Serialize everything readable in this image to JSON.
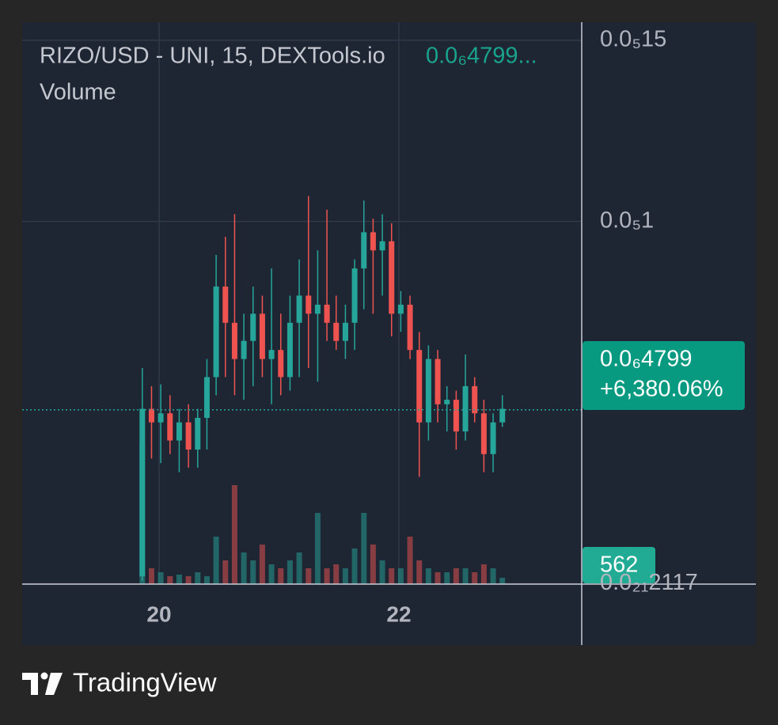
{
  "chart_data": {
    "type": "candlestick",
    "title": "RIZO/USD - UNI, 15, DEXTools.io",
    "legend_price": "0.0₆4799...",
    "volume_label": "Volume",
    "up_color": "#26a69a",
    "down_color": "#ef5350",
    "x": [
      19.86,
      19.937,
      20.014,
      20.091,
      20.168,
      20.245,
      20.322,
      20.399,
      20.476,
      20.553,
      20.63,
      20.707,
      20.784,
      20.861,
      20.938,
      21.015,
      21.092,
      21.169,
      21.246,
      21.323,
      21.4,
      21.477,
      21.554,
      21.631,
      21.708,
      21.785,
      21.862,
      21.939,
      22.016,
      22.093,
      22.17,
      22.247,
      22.324,
      22.401,
      22.478,
      22.555,
      22.632,
      22.709,
      22.786,
      22.863
    ],
    "open": [
      2e-08,
      4.825e-07,
      4.45e-07,
      4.7e-07,
      3.95e-07,
      4.45e-07,
      3.7e-07,
      4.575e-07,
      5.7e-07,
      8.2e-07,
      7.2e-07,
      6.2e-07,
      6.7e-07,
      7.45e-07,
      6.2e-07,
      6.45e-07,
      5.7e-07,
      7.2e-07,
      7.95e-07,
      7.45e-07,
      7.7e-07,
      7.2e-07,
      6.7e-07,
      7.2e-07,
      8.7e-07,
      9.7e-07,
      9.2e-07,
      9.45e-07,
      7.45e-07,
      7.7e-07,
      6.45e-07,
      4.45e-07,
      6.2e-07,
      4.95e-07,
      5.075e-07,
      4.2e-07,
      5.45e-07,
      4.7e-07,
      3.575e-07,
      4.45e-07
    ],
    "high": [
      5.95e-07,
      5.45e-07,
      5.5e-07,
      5.2e-07,
      4.825e-07,
      4.95e-07,
      4.825e-07,
      6.2e-07,
      9.075e-07,
      9.575e-07,
      1.02e-06,
      7.45e-07,
      8.2e-07,
      7.95e-07,
      8.7e-07,
      7.45e-07,
      7.95e-07,
      8.95e-07,
      1.07e-06,
      9.2e-07,
      1.0325e-06,
      7.95e-07,
      7.7e-07,
      8.95e-07,
      1.0575e-06,
      1.0075e-06,
      1.02e-06,
      9.95e-07,
      8.075e-07,
      7.95e-07,
      6.95e-07,
      6.575e-07,
      6.45e-07,
      5.45e-07,
      5.325e-07,
      6.325e-07,
      5.7e-07,
      5.075e-07,
      4.7e-07,
      5.2e-07
    ],
    "low": [
      7.5e-09,
      3.45e-07,
      3.325e-07,
      3.575e-07,
      3.075e-07,
      3.2e-07,
      3.2e-07,
      3.7e-07,
      5.2e-07,
      5.7e-07,
      5.2e-07,
      5.075e-07,
      5.45e-07,
      5.7e-07,
      4.95e-07,
      5.2e-07,
      5.325e-07,
      5.7e-07,
      5.95e-07,
      5.575e-07,
      6.7e-07,
      6.45e-07,
      6.2e-07,
      6.45e-07,
      7.575e-07,
      7.45e-07,
      7.95e-07,
      6.825e-07,
      6.95e-07,
      6.2e-07,
      2.95e-07,
      3.95e-07,
      4.45e-07,
      4.2e-07,
      3.7e-07,
      3.95e-07,
      4.45e-07,
      3.075e-07,
      3.075e-07,
      4.325e-07
    ],
    "close": [
      4.825e-07,
      4.45e-07,
      4.7e-07,
      3.95e-07,
      4.45e-07,
      3.7e-07,
      4.575e-07,
      5.7e-07,
      8.2e-07,
      7.2e-07,
      6.2e-07,
      6.7e-07,
      7.45e-07,
      6.2e-07,
      6.45e-07,
      5.7e-07,
      7.2e-07,
      7.95e-07,
      7.45e-07,
      7.7e-07,
      7.2e-07,
      6.7e-07,
      7.2e-07,
      8.7e-07,
      9.7e-07,
      9.2e-07,
      9.45e-07,
      7.45e-07,
      7.7e-07,
      6.45e-07,
      4.45e-07,
      6.2e-07,
      4.95e-07,
      5.075e-07,
      4.2e-07,
      5.45e-07,
      4.7e-07,
      3.575e-07,
      4.45e-07,
      4.825e-07
    ],
    "volume": [
      12460,
      1400,
      1050,
      700,
      840,
      700,
      1050,
      700,
      4200,
      2100,
      8750,
      2800,
      2100,
      3500,
      1750,
      1400,
      2100,
      2800,
      1400,
      6300,
      1400,
      1750,
      1400,
      3150,
      6300,
      3500,
      2100,
      1400,
      1400,
      4200,
      2100,
      1400,
      1050,
      1050,
      1400,
      1400,
      1050,
      1750,
      1400,
      562
    ],
    "xlim": [
      18.858,
      23.525
    ],
    "xticks": [
      20,
      22
    ],
    "ylim": [
      -1.5e-09,
      1.55e-06
    ],
    "yticks": [
      {
        "value": 1.5e-06,
        "label": "0.0₅15"
      },
      {
        "value": 1e-06,
        "label": "0.0₅1"
      },
      {
        "value": 2.117e-22,
        "label": "0.0₂₁2117"
      }
    ],
    "last_price": {
      "value": 4.799e-07,
      "label": "0.0₆4799"
    },
    "change_label": "+6,380.06%",
    "last_volume": 562,
    "grid": true
  },
  "footer": {
    "brand": "TradingView"
  }
}
